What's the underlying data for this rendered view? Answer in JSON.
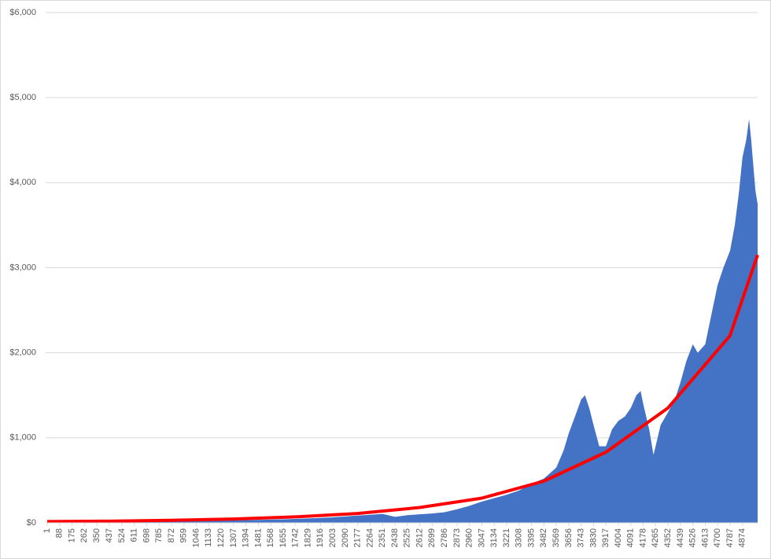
{
  "chart_data": {
    "type": "area",
    "series": [
      {
        "type": "area",
        "color": "#4472c4",
        "x": [
          1,
          88,
          175,
          262,
          350,
          437,
          524,
          611,
          698,
          785,
          872,
          959,
          1046,
          1133,
          1220,
          1307,
          1394,
          1481,
          1568,
          1655,
          1742,
          1829,
          1916,
          2003,
          2090,
          2177,
          2264,
          2351,
          2438,
          2525,
          2612,
          2699,
          2786,
          2873,
          2960,
          3047,
          3134,
          3221,
          3308,
          3395,
          3482,
          3569,
          3620,
          3656,
          3700,
          3743,
          3770,
          3800,
          3830,
          3870,
          3917,
          3960,
          4004,
          4050,
          4091,
          4130,
          4160,
          4178,
          4220,
          4250,
          4265,
          4300,
          4352,
          4400,
          4439,
          4480,
          4526,
          4560,
          4613,
          4650,
          4700,
          4740,
          4787,
          4820,
          4850,
          4874,
          4900,
          4920,
          4935,
          4950,
          4965,
          4980
        ],
        "values": [
          15,
          15,
          16,
          17,
          17,
          18,
          18,
          19,
          20,
          21,
          22,
          23,
          25,
          26,
          28,
          30,
          32,
          35,
          38,
          42,
          46,
          52,
          58,
          65,
          75,
          85,
          95,
          105,
          70,
          90,
          100,
          110,
          125,
          160,
          200,
          250,
          290,
          330,
          380,
          460,
          520,
          650,
          850,
          1050,
          1250,
          1450,
          1500,
          1350,
          1150,
          900,
          900,
          1100,
          1200,
          1250,
          1350,
          1500,
          1550,
          1400,
          1100,
          800,
          900,
          1150,
          1300,
          1450,
          1650,
          1900,
          2100,
          2000,
          2100,
          2400,
          2800,
          3000,
          3200,
          3500,
          3900,
          4300,
          4500,
          4750,
          4500,
          4200,
          3900,
          3750
        ]
      },
      {
        "type": "line",
        "color": "#ff0000",
        "x": [
          1,
          436,
          871,
          1306,
          1741,
          2176,
          2611,
          3046,
          3481,
          3916,
          4351,
          4786,
          4980
        ],
        "values": [
          15,
          20,
          30,
          45,
          70,
          110,
          180,
          290,
          490,
          830,
          1350,
          2200,
          3150
        ]
      }
    ],
    "xlim": [
      1,
      4980
    ],
    "xticks": [
      1,
      88,
      175,
      262,
      350,
      437,
      524,
      611,
      698,
      785,
      872,
      959,
      1046,
      1133,
      1220,
      1307,
      1394,
      1481,
      1568,
      1655,
      1742,
      1829,
      1916,
      2003,
      2090,
      2177,
      2264,
      2351,
      2438,
      2525,
      2612,
      2699,
      2786,
      2873,
      2960,
      3047,
      3134,
      3221,
      3308,
      3395,
      3482,
      3569,
      3656,
      3743,
      3830,
      3917,
      4004,
      4091,
      4178,
      4265,
      4352,
      4439,
      4526,
      4613,
      4700,
      4787,
      4874
    ],
    "ylim": [
      0,
      6000
    ],
    "yticks": [
      {
        "value": 0,
        "label": "$0"
      },
      {
        "value": 1000,
        "label": "$1,000"
      },
      {
        "value": 2000,
        "label": "$2,000"
      },
      {
        "value": 3000,
        "label": "$3,000"
      },
      {
        "value": 4000,
        "label": "$4,000"
      },
      {
        "value": 5000,
        "label": "$5,000"
      },
      {
        "value": 6000,
        "label": "$6,000"
      }
    ],
    "grid": true
  }
}
